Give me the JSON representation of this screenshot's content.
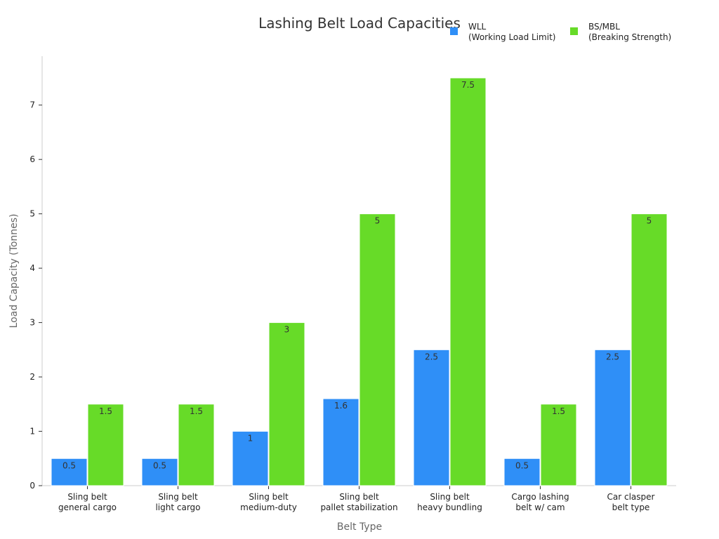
{
  "chart_data": {
    "type": "bar",
    "title": "Lashing Belt Load Capacities",
    "xlabel": "Belt Type",
    "ylabel": "Load Capacity (Tonnes)",
    "ylim": [
      0,
      7.9
    ],
    "yticks": [
      0,
      1,
      2,
      3,
      4,
      5,
      6,
      7
    ],
    "grid": false,
    "legend_position": "top-right",
    "categories": [
      [
        "Sling belt",
        "general cargo"
      ],
      [
        "Sling belt",
        "light cargo"
      ],
      [
        "Sling belt",
        "medium-duty"
      ],
      [
        "Sling belt",
        "pallet stabilization"
      ],
      [
        "Sling belt",
        "heavy bundling"
      ],
      [
        "Cargo lashing",
        "belt w/ cam"
      ],
      [
        "Car clasper",
        "belt type"
      ]
    ],
    "series": [
      {
        "name": [
          "WLL",
          "(Working Load Limit)"
        ],
        "color": "#2F8FF7",
        "values": [
          0.5,
          0.5,
          1,
          1.6,
          2.5,
          0.5,
          2.5
        ]
      },
      {
        "name": [
          "BS/MBL",
          "(Breaking Strength)"
        ],
        "color": "#67DB28",
        "values": [
          1.5,
          1.5,
          3,
          5,
          7.5,
          1.5,
          5
        ]
      }
    ]
  }
}
